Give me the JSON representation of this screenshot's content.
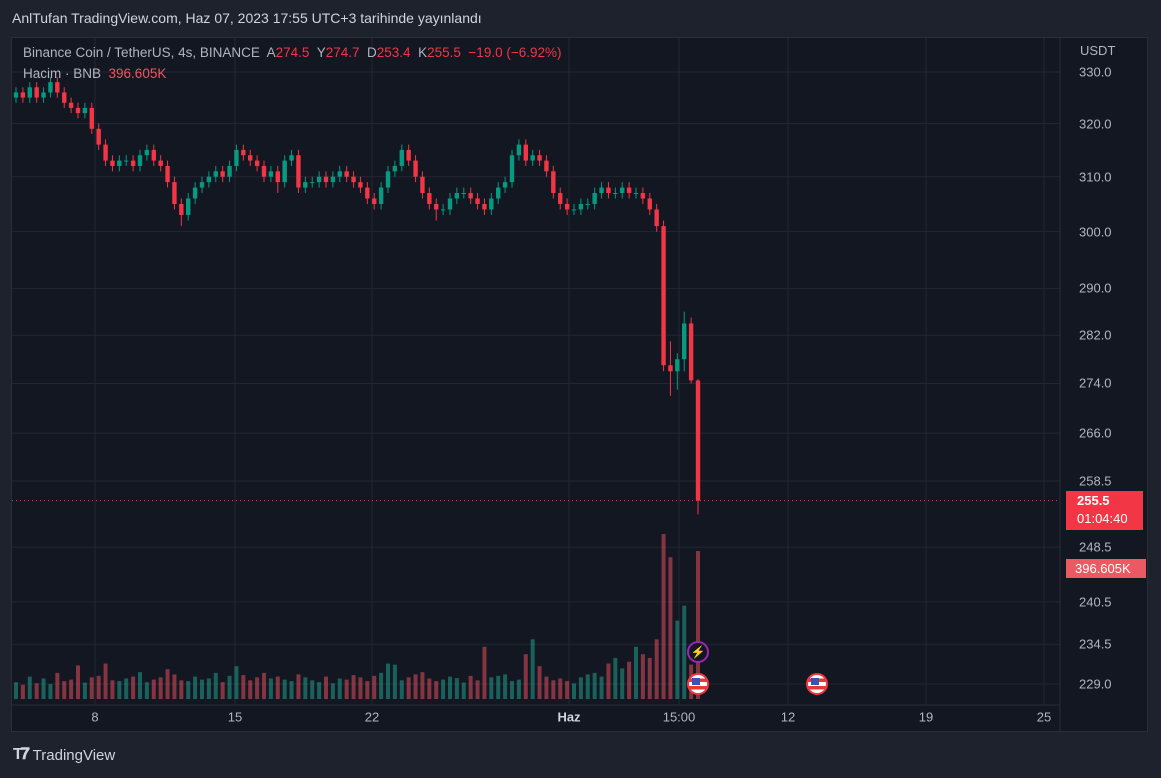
{
  "header": {
    "published": "AnlTufan TradingView.com, Haz 07, 2023 17:55 UTC+3 tarihinde yayınlandı"
  },
  "legend": {
    "symbol": "Binance Coin / TetherUS, 4s, BINANCE",
    "o_label": "A",
    "o": "274.5",
    "h_label": "Y",
    "h": "274.7",
    "l_label": "D",
    "l": "253.4",
    "c_label": "K",
    "c": "255.5",
    "change": "−19.0 (−6.92%)",
    "volume_label": "Hacim · BNB",
    "volume": "396.605K"
  },
  "price_axis": {
    "currency": "USDT",
    "ticks": [
      "330.0",
      "320.0",
      "310.0",
      "300.0",
      "290.0",
      "282.0",
      "274.0",
      "266.0",
      "258.5",
      "248.5",
      "240.5",
      "234.5",
      "229.0"
    ]
  },
  "last_price": {
    "price": "255.5",
    "countdown": "01:04:40",
    "volume": "396.605K"
  },
  "time_axis": {
    "ticks": [
      "8",
      "15",
      "22",
      "Haz",
      "15:00",
      "12",
      "19",
      "25"
    ]
  },
  "footer": {
    "brand": "TradingView"
  },
  "colors": {
    "up": "#089981",
    "down": "#f23645",
    "background": "#131722",
    "grid": "#232733"
  },
  "events": [
    {
      "icon": "lightning-icon"
    },
    {
      "icon": "us-flag-icon"
    },
    {
      "icon": "us-flag-icon"
    }
  ],
  "chart_data": {
    "type": "candlestick",
    "scale": "log",
    "ylim": [
      229,
      330
    ],
    "ylabel": "USDT",
    "grid": true,
    "candles": [
      [
        325,
        327,
        324,
        326
      ],
      [
        326,
        327,
        324,
        325
      ],
      [
        325,
        328,
        324,
        327
      ],
      [
        327,
        328,
        324,
        325
      ],
      [
        325,
        327,
        324,
        326
      ],
      [
        326,
        329,
        325,
        328
      ],
      [
        328,
        329,
        325,
        326
      ],
      [
        326,
        327,
        323,
        324
      ],
      [
        324,
        325,
        322,
        323
      ],
      [
        323,
        324,
        321,
        322
      ],
      [
        322,
        324,
        321,
        323
      ],
      [
        323,
        324,
        318,
        319
      ],
      [
        319,
        320,
        315,
        316
      ],
      [
        316,
        317,
        312,
        313
      ],
      [
        313,
        314,
        311,
        312
      ],
      [
        312,
        314,
        311,
        313
      ],
      [
        313,
        314,
        312,
        313
      ],
      [
        313,
        314,
        311,
        312
      ],
      [
        312,
        315,
        311,
        314
      ],
      [
        314,
        316,
        313,
        315
      ],
      [
        315,
        316,
        312,
        313
      ],
      [
        313,
        314,
        311,
        312
      ],
      [
        312,
        313,
        308,
        309
      ],
      [
        309,
        310,
        304,
        305
      ],
      [
        305,
        306,
        301,
        303
      ],
      [
        303,
        307,
        302,
        306
      ],
      [
        306,
        309,
        305,
        308
      ],
      [
        308,
        310,
        307,
        309
      ],
      [
        309,
        311,
        308,
        310
      ],
      [
        310,
        312,
        309,
        311
      ],
      [
        311,
        312,
        309,
        310
      ],
      [
        310,
        313,
        309,
        312
      ],
      [
        312,
        316,
        311,
        315
      ],
      [
        315,
        316,
        313,
        314
      ],
      [
        314,
        315,
        312,
        313
      ],
      [
        313,
        314,
        311,
        312
      ],
      [
        312,
        313,
        309,
        310
      ],
      [
        310,
        312,
        309,
        311
      ],
      [
        311,
        312,
        307,
        309
      ],
      [
        309,
        314,
        308,
        313
      ],
      [
        313,
        315,
        312,
        314
      ],
      [
        314,
        315,
        307,
        308
      ],
      [
        308,
        310,
        307,
        309
      ],
      [
        309,
        310,
        308,
        309
      ],
      [
        309,
        311,
        308,
        310
      ],
      [
        310,
        311,
        308,
        309
      ],
      [
        309,
        311,
        308,
        310
      ],
      [
        310,
        312,
        309,
        311
      ],
      [
        311,
        312,
        309,
        310
      ],
      [
        310,
        311,
        308,
        309
      ],
      [
        309,
        310,
        307,
        308
      ],
      [
        308,
        309,
        305,
        306
      ],
      [
        306,
        307,
        304,
        305
      ],
      [
        305,
        309,
        304,
        308
      ],
      [
        308,
        312,
        307,
        311
      ],
      [
        311,
        313,
        310,
        312
      ],
      [
        312,
        316,
        311,
        315
      ],
      [
        315,
        316,
        312,
        313
      ],
      [
        313,
        314,
        309,
        310
      ],
      [
        310,
        311,
        306,
        307
      ],
      [
        307,
        308,
        304,
        305
      ],
      [
        305,
        306,
        302,
        304
      ],
      [
        304,
        305,
        303,
        304
      ],
      [
        304,
        307,
        303,
        306
      ],
      [
        306,
        308,
        305,
        307
      ],
      [
        307,
        308,
        306,
        307
      ],
      [
        307,
        308,
        305,
        306
      ],
      [
        306,
        307,
        304,
        305
      ],
      [
        305,
        306,
        303,
        304
      ],
      [
        304,
        307,
        303,
        306
      ],
      [
        306,
        309,
        305,
        308
      ],
      [
        308,
        310,
        307,
        309
      ],
      [
        309,
        315,
        308,
        314
      ],
      [
        314,
        317,
        313,
        316
      ],
      [
        316,
        317,
        312,
        313
      ],
      [
        313,
        315,
        312,
        314
      ],
      [
        314,
        315,
        312,
        313
      ],
      [
        313,
        314,
        310,
        311
      ],
      [
        311,
        312,
        306,
        307
      ],
      [
        307,
        308,
        304,
        305
      ],
      [
        305,
        306,
        303,
        304
      ],
      [
        304,
        305,
        303,
        304
      ],
      [
        304,
        306,
        303,
        305
      ],
      [
        305,
        306,
        304,
        305
      ],
      [
        305,
        308,
        304,
        307
      ],
      [
        307,
        309,
        306,
        308
      ],
      [
        308,
        309,
        306,
        307
      ],
      [
        307,
        308,
        306,
        307
      ],
      [
        307,
        309,
        306,
        308
      ],
      [
        308,
        309,
        306,
        307
      ],
      [
        307,
        308,
        306,
        307
      ],
      [
        307,
        308,
        305,
        306
      ],
      [
        306,
        307,
        303,
        304
      ],
      [
        304,
        305,
        300,
        301
      ],
      [
        301,
        302,
        276,
        277
      ],
      [
        277,
        281,
        272,
        276
      ],
      [
        276,
        279,
        273,
        278
      ],
      [
        278,
        286,
        276,
        284
      ],
      [
        284,
        285,
        274,
        274.5
      ],
      [
        274.5,
        274.7,
        253.4,
        255.5
      ]
    ],
    "volume_k": [
      45,
      38,
      60,
      42,
      55,
      40,
      70,
      48,
      52,
      90,
      44,
      58,
      62,
      95,
      50,
      48,
      55,
      60,
      72,
      45,
      52,
      58,
      80,
      66,
      50,
      48,
      60,
      52,
      55,
      70,
      45,
      62,
      88,
      64,
      50,
      58,
      70,
      55,
      60,
      52,
      48,
      66,
      58,
      50,
      45,
      60,
      42,
      55,
      52,
      64,
      58,
      48,
      62,
      70,
      95,
      92,
      50,
      58,
      66,
      72,
      55,
      48,
      52,
      60,
      56,
      44,
      62,
      50,
      140,
      58,
      62,
      66,
      48,
      52,
      120,
      160,
      88,
      60,
      50,
      55,
      48,
      42,
      58,
      66,
      70,
      60,
      95,
      110,
      82,
      100,
      140,
      120,
      110,
      160,
      442,
      380,
      210,
      250,
      92,
      396.605
    ]
  }
}
